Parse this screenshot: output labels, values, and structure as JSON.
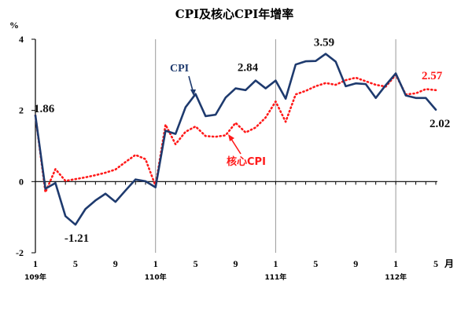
{
  "chart_data": {
    "type": "line",
    "title": "CPI及核心CPI年增率",
    "ylabel": "%",
    "xlabel_unit": "月",
    "ylim": [
      -2,
      4
    ],
    "yticks": [
      4,
      2,
      0,
      -2
    ],
    "x_tick_labels": [
      "1",
      "5",
      "9",
      "1",
      "5",
      "9",
      "1",
      "5",
      "9",
      "1",
      "5"
    ],
    "x_tick_positions": [
      1,
      5,
      9,
      13,
      17,
      21,
      25,
      29,
      33,
      37,
      41
    ],
    "year_labels": [
      {
        "x": 1,
        "text": "109年"
      },
      {
        "x": 13,
        "text": "110年"
      },
      {
        "x": 25,
        "text": "111年"
      },
      {
        "x": 37,
        "text": "112年"
      }
    ],
    "year_dividers": [
      13,
      25,
      37
    ],
    "grid": false,
    "series": [
      {
        "name": "CPI",
        "color": "#1e3a6e",
        "style": "solid",
        "values": [
          1.86,
          -0.2,
          -0.04,
          -0.97,
          -1.21,
          -0.77,
          -0.53,
          -0.34,
          -0.57,
          -0.25,
          0.06,
          0.01,
          -0.16,
          1.43,
          1.34,
          2.09,
          2.46,
          1.84,
          1.88,
          2.36,
          2.62,
          2.57,
          2.84,
          2.62,
          2.84,
          2.33,
          3.29,
          3.38,
          3.39,
          3.59,
          3.37,
          2.68,
          2.76,
          2.74,
          2.35,
          2.71,
          3.04,
          2.42,
          2.35,
          2.35,
          2.02
        ]
      },
      {
        "name": "核心CPI",
        "color": "#ff1a1a",
        "style": "dotted",
        "values": [
          1.86,
          -0.3,
          0.35,
          0.02,
          0.07,
          0.12,
          0.18,
          0.25,
          0.34,
          0.55,
          0.75,
          0.63,
          -0.12,
          1.6,
          1.05,
          1.4,
          1.55,
          1.28,
          1.26,
          1.3,
          1.65,
          1.38,
          1.52,
          1.8,
          2.25,
          1.68,
          2.45,
          2.55,
          2.68,
          2.77,
          2.72,
          2.85,
          2.92,
          2.82,
          2.72,
          2.67,
          3.0,
          2.45,
          2.48,
          2.6,
          2.57
        ]
      }
    ],
    "annotations": [
      {
        "text": "1.86",
        "x": 1,
        "y": 1.86
      },
      {
        "text": "-1.21",
        "x": 5,
        "y": -1.21
      },
      {
        "text": "2.84",
        "x": 23,
        "y": 2.84
      },
      {
        "text": "3.59",
        "x": 30,
        "y": 3.59
      },
      {
        "text": "2.57",
        "x": 41,
        "y": 2.57
      },
      {
        "text": "2.02",
        "x": 41,
        "y": 2.02
      }
    ],
    "series_labels": [
      {
        "text": "CPI",
        "series": "CPI"
      },
      {
        "text": "核心CPI",
        "series": "核心CPI"
      }
    ]
  }
}
